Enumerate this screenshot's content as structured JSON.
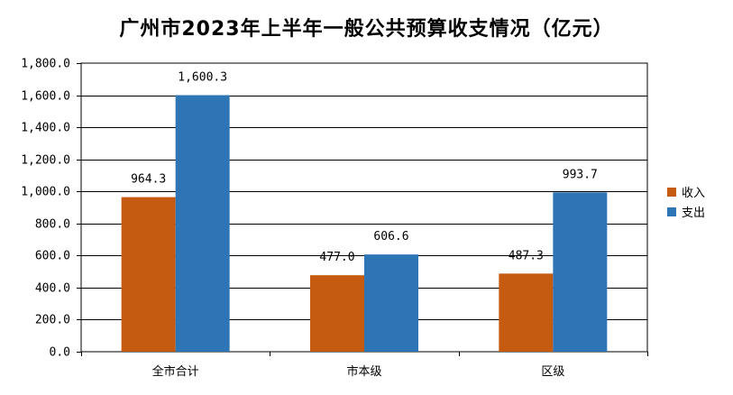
{
  "chart_data": {
    "type": "bar",
    "title": "广州市2023年上半年一般公共预算收支情况（亿元）",
    "xlabel": "",
    "ylabel": "",
    "categories": [
      "全市合计",
      "市本级",
      "区级"
    ],
    "series": [
      {
        "name": "收入",
        "values": [
          964.3,
          477.0,
          487.3
        ],
        "labels": [
          "964.3",
          "477.0",
          "487.3"
        ],
        "color": "#c55a11"
      },
      {
        "name": "支出",
        "values": [
          1600.3,
          606.6,
          993.7
        ],
        "labels": [
          "1,600.3",
          "606.6",
          "993.7"
        ],
        "color": "#2e75b6"
      }
    ],
    "ylim": [
      0,
      1800
    ],
    "yticks": [
      0,
      200,
      400,
      600,
      800,
      1000,
      1200,
      1400,
      1600,
      1800
    ],
    "ytick_labels": [
      "0.0",
      "200.0",
      "400.0",
      "600.0",
      "800.0",
      "1,000.0",
      "1,200.0",
      "1,400.0",
      "1,600.0",
      "1,800.0"
    ],
    "grid": true,
    "legend_position": "right"
  }
}
